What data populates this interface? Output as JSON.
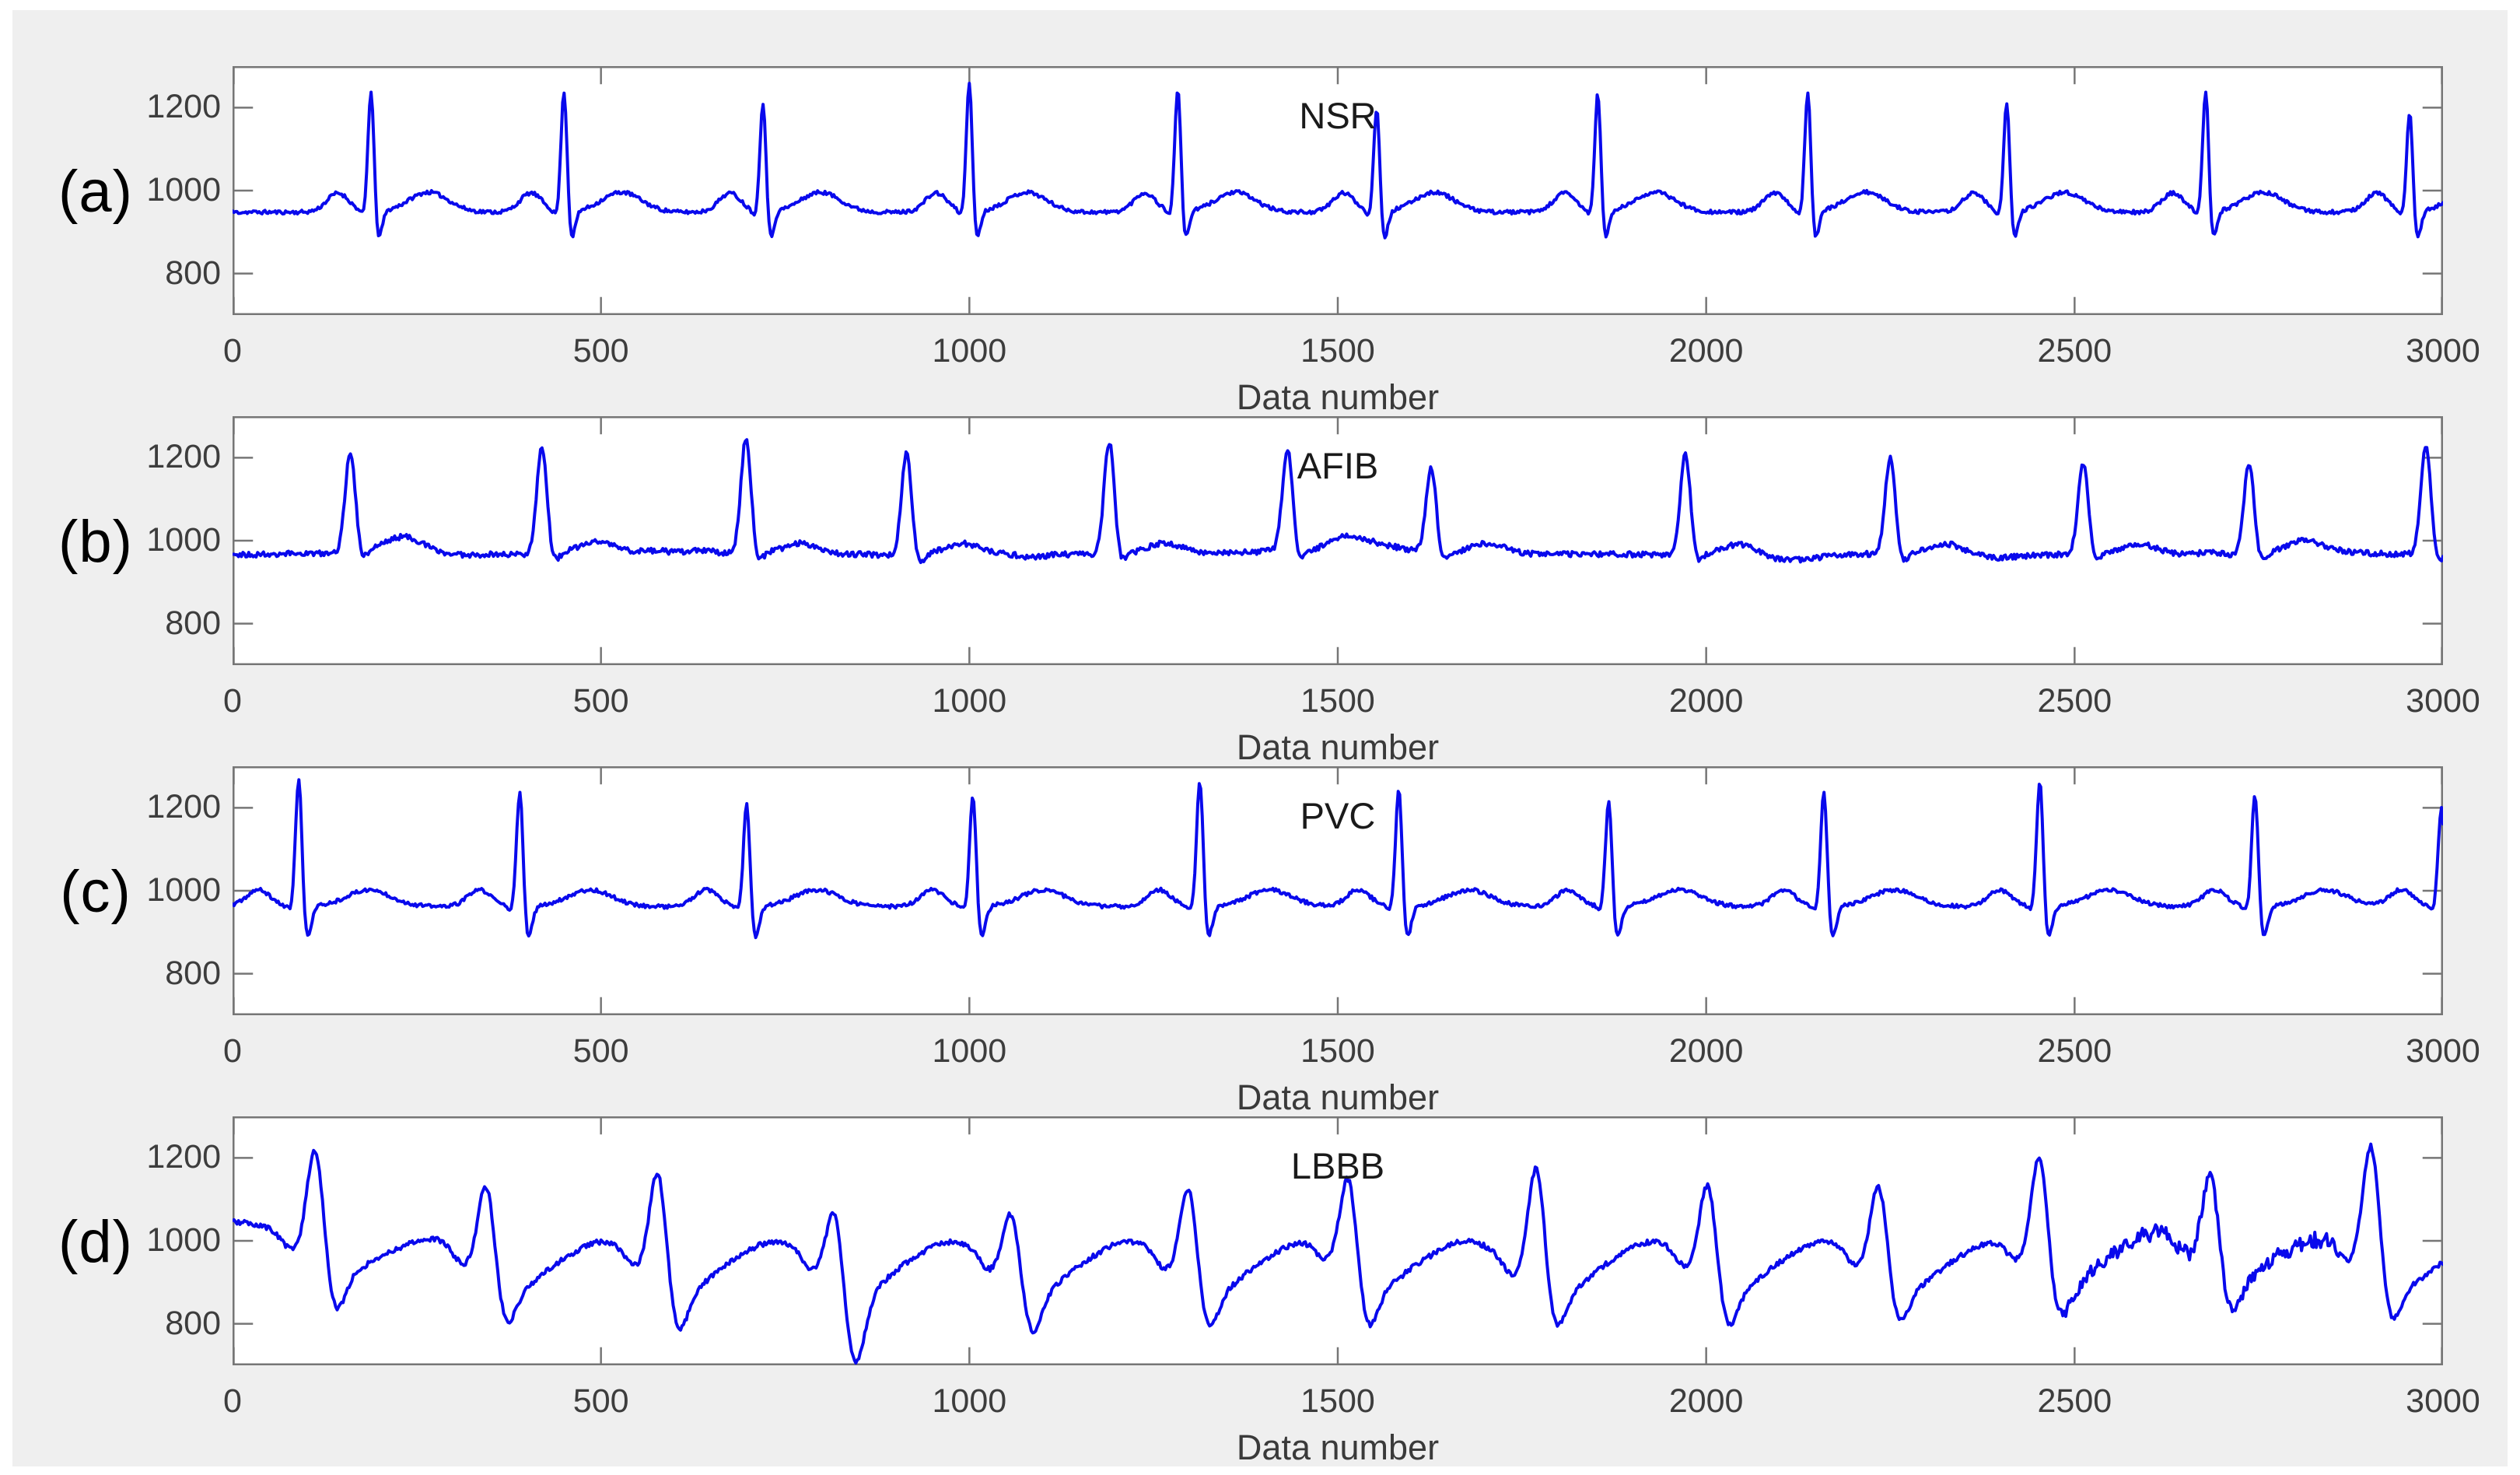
{
  "figure": {
    "page_background": "#ffffff",
    "figure_background": "#efefef",
    "plot_background": "#ffffff",
    "line_color": "#0909ec",
    "axis_color": "#767676",
    "tick_label_color": "#3d3d3d",
    "title_color": "#1a1a1a"
  },
  "axes": {
    "xtick_labels": [
      "0",
      "500",
      "1000",
      "1500",
      "2000",
      "2500",
      "3000"
    ],
    "ytick_labels": [
      "1200",
      "1000",
      "800"
    ],
    "xlabel": "Data number"
  },
  "chart_data": [
    {
      "type": "line",
      "panel_label": "(a)",
      "title": "NSR",
      "xlabel": "Data number",
      "ylabel": "",
      "xlim": [
        0,
        3000
      ],
      "ylim": [
        700,
        1300
      ],
      "xticks": [
        0,
        500,
        1000,
        1500,
        2000,
        2500,
        3000
      ],
      "yticks": [
        800,
        1000,
        1200
      ],
      "grid": false,
      "legend": "none",
      "baseline": 948,
      "r_peaks": [
        [
          188,
          1244
        ],
        [
          450,
          1245
        ],
        [
          720,
          1221
        ],
        [
          1000,
          1263
        ],
        [
          1283,
          1252
        ],
        [
          1553,
          1206
        ],
        [
          1853,
          1240
        ],
        [
          2138,
          1244
        ],
        [
          2408,
          1216
        ],
        [
          2678,
          1248
        ],
        [
          2955,
          1197
        ]
      ],
      "morphology": "nsr",
      "seed": 11,
      "morph": {
        "noise": 4.5,
        "p": {
          "off": -45,
          "amp": 46,
          "w": 15
        },
        "q": {
          "off": -8,
          "amp": -16,
          "w": 5
        },
        "r": {
          "w": 4.2
        },
        "s": {
          "off": 9,
          "amp": -75,
          "w": 5.2
        },
        "t": {
          "off": 78,
          "amp": 48,
          "w": 27
        }
      }
    },
    {
      "type": "line",
      "panel_label": "(b)",
      "title": "AFIB",
      "xlabel": "Data number",
      "ylabel": "",
      "xlim": [
        0,
        3000
      ],
      "ylim": [
        700,
        1300
      ],
      "xticks": [
        0,
        500,
        1000,
        1500,
        2000,
        2500,
        3000
      ],
      "yticks": [
        800,
        1000,
        1200
      ],
      "grid": false,
      "legend": "none",
      "baseline": 967,
      "r_peaks": [
        [
          160,
          1206
        ],
        [
          420,
          1222
        ],
        [
          697,
          1240
        ],
        [
          915,
          1212
        ],
        [
          1190,
          1234
        ],
        [
          1432,
          1210
        ],
        [
          1627,
          1172
        ],
        [
          1972,
          1203
        ],
        [
          2250,
          1197
        ],
        [
          2512,
          1177
        ],
        [
          2737,
          1186
        ],
        [
          2977,
          1226
        ]
      ],
      "morphology": "afib",
      "seed": 23,
      "morph": {
        "noise": 6.5,
        "r": {
          "w": 7
        },
        "s": {
          "off": 13,
          "amp": -26,
          "w": 8
        },
        "t": {
          "off": 75,
          "amp": 26,
          "w": 24
        },
        "wavelets": {
          "count": 30,
          "amp": 15,
          "wmin": 15,
          "wmax": 45
        }
      }
    },
    {
      "type": "line",
      "panel_label": "(c)",
      "title": "PVC",
      "xlabel": "Data number",
      "ylabel": "",
      "xlim": [
        0,
        3000
      ],
      "ylim": [
        700,
        1300
      ],
      "xticks": [
        0,
        500,
        1000,
        1500,
        2000,
        2500,
        3000
      ],
      "yticks": [
        800,
        1000,
        1200
      ],
      "grid": false,
      "legend": "none",
      "baseline": 962,
      "r_peaks": [
        [
          90,
          1276
        ],
        [
          390,
          1247
        ],
        [
          698,
          1219
        ],
        [
          1005,
          1238
        ],
        [
          1313,
          1272
        ],
        [
          1583,
          1253
        ],
        [
          1868,
          1225
        ],
        [
          2160,
          1249
        ],
        [
          2453,
          1272
        ],
        [
          2745,
          1244
        ],
        [
          2998,
          1210
        ]
      ],
      "morphology": "pvc",
      "seed": 37,
      "morph": {
        "noise": 4.5,
        "p": {
          "off": -55,
          "amp": 40,
          "w": 16
        },
        "q": {
          "off": -9,
          "amp": -14,
          "w": 5
        },
        "r": {
          "w": 4.5
        },
        "s": {
          "off": 10,
          "amp": -85,
          "w": 6
        },
        "t": {
          "off": 95,
          "amp": 40,
          "w": 30
        }
      }
    },
    {
      "type": "line",
      "panel_label": "(d)",
      "title": "LBBB",
      "xlabel": "Data number",
      "ylabel": "",
      "xlim": [
        0,
        3000
      ],
      "ylim": [
        700,
        1300
      ],
      "xticks": [
        0,
        500,
        1000,
        1500,
        2000,
        2500,
        3000
      ],
      "yticks": [
        800,
        1000,
        1200
      ],
      "grid": false,
      "legend": "none",
      "baseline": 903,
      "r_peaks": [
        [
          113,
          1147
        ],
        [
          345,
          1105
        ],
        [
          578,
          1140
        ],
        [
          818,
          1060
        ],
        [
          1058,
          1050
        ],
        [
          1298,
          1108
        ],
        [
          1515,
          1110
        ],
        [
          1770,
          1165
        ],
        [
          2003,
          1110
        ],
        [
          2235,
          1105
        ],
        [
          2453,
          1160
        ],
        [
          2685,
          1100
        ],
        [
          2903,
          1185
        ]
      ],
      "morphology": "lbbb",
      "seed": 53,
      "morph": {
        "noise": 6,
        "pre": {
          "off": -33,
          "amp": -35,
          "w": 13
        },
        "r": {
          "w": 11
        },
        "sOff": 26,
        "sW": 14,
        "s_depth": 775,
        "deep": {
          "x": 818,
          "depth": 690
        },
        "sh": {
          "off": 58,
          "amp": -20,
          "w": 16
        },
        "dome": {
          "off": 160,
          "amp": 95,
          "w": 52
        },
        "start": {
          "amp": 142,
          "w": 110
        },
        "late": {
          "from": 2470,
          "to": 2880,
          "noise": 16,
          "lift": 28
        }
      }
    }
  ]
}
